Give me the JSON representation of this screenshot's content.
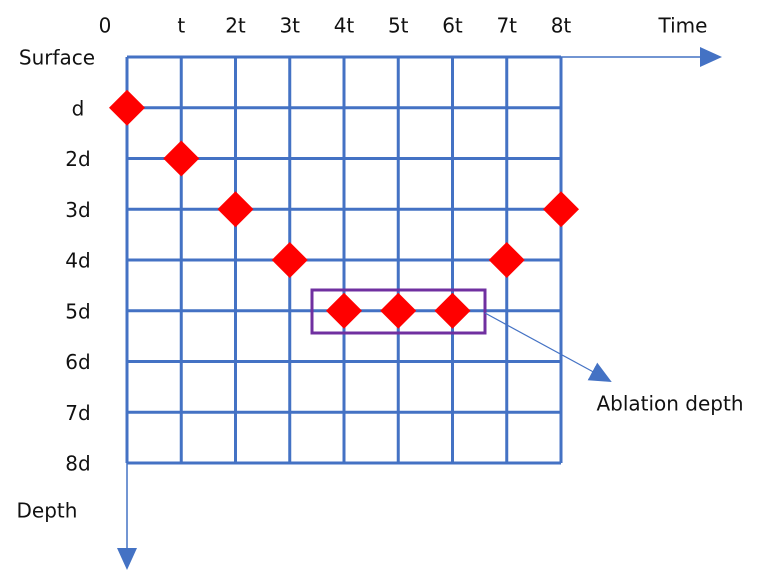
{
  "diagram": {
    "time_labels": [
      "0",
      "t",
      "2t",
      "3t",
      "4t",
      "5t",
      "6t",
      "7t",
      "8t"
    ],
    "time_axis_label": "Time",
    "surface_label": "Surface",
    "depth_labels": [
      "d",
      "2d",
      "3d",
      "4d",
      "5d",
      "6d",
      "7d",
      "8d"
    ],
    "depth_axis_label": "Depth",
    "points": [
      {
        "time": "0",
        "depth": "d"
      },
      {
        "time": "t",
        "depth": "2d"
      },
      {
        "time": "2t",
        "depth": "3d"
      },
      {
        "time": "3t",
        "depth": "4d"
      },
      {
        "time": "4t",
        "depth": "5d"
      },
      {
        "time": "5t",
        "depth": "5d"
      },
      {
        "time": "6t",
        "depth": "5d"
      },
      {
        "time": "7t",
        "depth": "4d"
      },
      {
        "time": "8t",
        "depth": "3d"
      }
    ],
    "annotation": "Ablation depth"
  }
}
